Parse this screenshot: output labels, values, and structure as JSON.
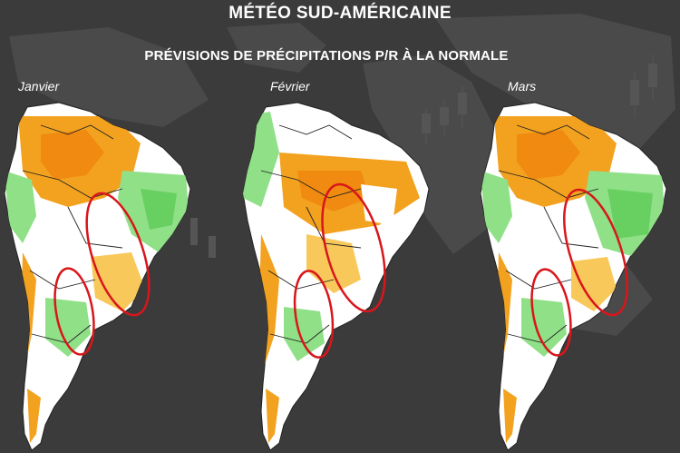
{
  "header": {
    "title": "MÉTÉO SUD-AMÉRICAINE",
    "subtitle": "PRÉVISIONS DE PRÉCIPITATIONS P/R À LA NORMALE"
  },
  "maps": [
    {
      "month": "Janvier"
    },
    {
      "month": "Février"
    },
    {
      "month": "Mars"
    }
  ],
  "colors": {
    "background": "#3b3b3b",
    "world_land": "#505050",
    "continent": "#ffffff",
    "drier": "#f3a21f",
    "drier_light": "#f8c95a",
    "wetter": "#90e088",
    "wetter_strong": "#68d060",
    "highlight_ellipse": "#d8161b",
    "borders": "#222222"
  }
}
